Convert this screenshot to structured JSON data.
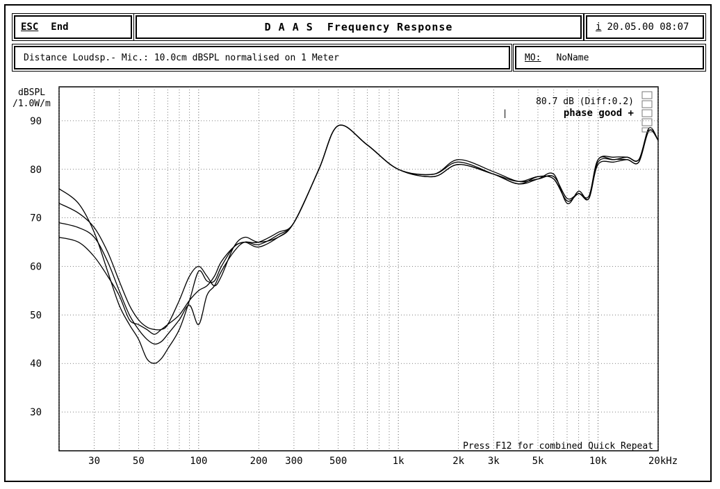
{
  "header": {
    "esc_key": "ESC",
    "esc_label": "End",
    "title": "D A A S  Frequency Response",
    "info_key": "i",
    "datetime": "20.05.00 08:07"
  },
  "subheader": {
    "info": "Distance Loudsp.- Mic.: 10.0cm dBSPL normalised on 1 Meter",
    "mo_key": "MO:",
    "mo_value": "NoName"
  },
  "chart_data": {
    "type": "line",
    "title": "",
    "ylabel": "dBSPL /1.0W/m",
    "xlabel": "",
    "xunit": "Hz",
    "xscale": "log",
    "xlim": [
      20,
      20000
    ],
    "ylim": [
      22,
      97
    ],
    "x_ticks": [
      {
        "v": 30,
        "label": "30"
      },
      {
        "v": 50,
        "label": "50"
      },
      {
        "v": 100,
        "label": "100"
      },
      {
        "v": 200,
        "label": "200"
      },
      {
        "v": 300,
        "label": "300"
      },
      {
        "v": 500,
        "label": "500"
      },
      {
        "v": 1000,
        "label": "1k"
      },
      {
        "v": 2000,
        "label": "2k"
      },
      {
        "v": 3000,
        "label": "3k"
      },
      {
        "v": 5000,
        "label": "5k"
      },
      {
        "v": 10000,
        "label": "10k"
      },
      {
        "v": 20000,
        "label": "20kHz"
      }
    ],
    "y_ticks": [
      30,
      40,
      50,
      60,
      70,
      80,
      90
    ],
    "grid": true,
    "annotation_db": "80.7 dB (Diff:0.2)",
    "annotation_phase": "phase good +",
    "footer_note": "Press F12 for combined Quick Repeat",
    "series": [
      {
        "x": [
          20,
          25,
          30,
          35,
          40,
          45,
          50,
          55,
          60,
          65,
          70,
          80,
          90,
          100,
          110,
          120,
          130,
          150,
          170,
          200,
          250,
          300,
          400,
          500,
          700,
          1000,
          1500,
          2000,
          3000,
          4000,
          5000,
          6000,
          7000,
          8000,
          9000,
          10000,
          12000,
          14000,
          16000,
          18000,
          20000
        ],
        "y": [
          66,
          65,
          62,
          58,
          54,
          49,
          48,
          47,
          46,
          47,
          48,
          50,
          53,
          55,
          56,
          58,
          61,
          64,
          65,
          64,
          66,
          69,
          80,
          89,
          85,
          80,
          78.5,
          81,
          79,
          77,
          78.5,
          78,
          73.5,
          75,
          74,
          81,
          81.5,
          82,
          81.5,
          88.5,
          86
        ]
      },
      {
        "x": [
          20,
          25,
          30,
          35,
          40,
          45,
          50,
          55,
          60,
          65,
          70,
          80,
          90,
          100,
          110,
          120,
          130,
          150,
          170,
          200,
          250,
          300,
          400,
          500,
          700,
          1000,
          1500,
          2000,
          3000,
          4000,
          5000,
          6000,
          7000,
          8000,
          9000,
          10000,
          12000,
          14000,
          16000,
          18000,
          20000
        ],
        "y": [
          76,
          73,
          67,
          59,
          52,
          48,
          45,
          41,
          40,
          41,
          43,
          47,
          53,
          59,
          57,
          57,
          60,
          64,
          65,
          65,
          67,
          69,
          80,
          89,
          85,
          80,
          79,
          82,
          79.5,
          77.5,
          78,
          78.5,
          74,
          75,
          74.5,
          82,
          82.5,
          82.5,
          82,
          88.5,
          86
        ]
      },
      {
        "x": [
          20,
          25,
          30,
          35,
          40,
          45,
          50,
          55,
          60,
          65,
          70,
          80,
          90,
          100,
          110,
          120,
          130,
          150,
          170,
          200,
          250,
          300,
          400,
          500,
          700,
          1000,
          1500,
          2000,
          3000,
          4000,
          5000,
          6000,
          7000,
          8000,
          9000,
          10000,
          12000,
          14000,
          16000,
          18000,
          20000
        ],
        "y": [
          73,
          71,
          68,
          63,
          57,
          52,
          49,
          47.5,
          47,
          47,
          48,
          53,
          58,
          60,
          58,
          56,
          58,
          64,
          66,
          65,
          66,
          69,
          80,
          89,
          85,
          80,
          79,
          81.5,
          79,
          77,
          78,
          79,
          73,
          75.5,
          74,
          82,
          82,
          82.5,
          82,
          88,
          86
        ]
      },
      {
        "x": [
          20,
          25,
          30,
          35,
          40,
          45,
          50,
          55,
          60,
          65,
          70,
          80,
          90,
          100,
          110,
          120,
          130,
          150,
          170,
          200,
          250,
          300,
          400,
          500,
          700,
          1000,
          1500,
          2000,
          3000,
          4000,
          5000,
          6000,
          7000,
          8000,
          9000,
          10000,
          12000,
          14000,
          16000,
          18000,
          20000
        ],
        "y": [
          69,
          68,
          66,
          61,
          55,
          50,
          47,
          45,
          44,
          44.5,
          46,
          49,
          52,
          48,
          54,
          56,
          59,
          63,
          65,
          64.5,
          66.5,
          69,
          80,
          89,
          85,
          80,
          78.5,
          81,
          79,
          77.5,
          78.5,
          78,
          73.5,
          75,
          74,
          81.5,
          82,
          82,
          81.5,
          88,
          86
        ]
      }
    ]
  }
}
